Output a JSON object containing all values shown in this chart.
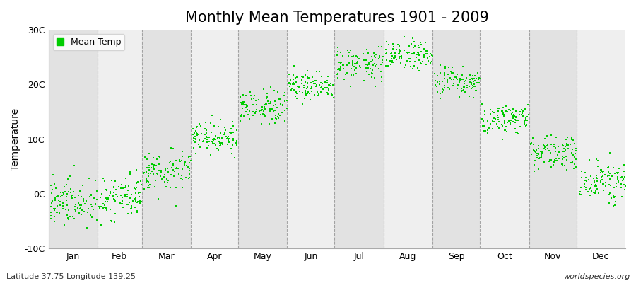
{
  "title": "Monthly Mean Temperatures 1901 - 2009",
  "ylabel": "Temperature",
  "ylim": [
    -10,
    30
  ],
  "yticks": [
    -10,
    0,
    10,
    20,
    30
  ],
  "ytick_labels": [
    "-10C",
    "0C",
    "10C",
    "20C",
    "30C"
  ],
  "months": [
    "Jan",
    "Feb",
    "Mar",
    "Apr",
    "May",
    "Jun",
    "Jul",
    "Aug",
    "Sep",
    "Oct",
    "Nov",
    "Dec"
  ],
  "month_days": [
    31,
    28,
    31,
    30,
    31,
    30,
    31,
    31,
    30,
    31,
    30,
    31
  ],
  "mean_temps": [
    -2.0,
    -1.5,
    3.5,
    9.5,
    15.0,
    19.0,
    23.0,
    24.5,
    19.5,
    13.0,
    7.0,
    1.5
  ],
  "std_temps": [
    2.2,
    2.2,
    1.8,
    1.4,
    1.3,
    1.3,
    1.3,
    1.3,
    1.3,
    1.3,
    1.3,
    1.8
  ],
  "trend_per_year": [
    0.01,
    0.01,
    0.01,
    0.01,
    0.01,
    0.01,
    0.01,
    0.01,
    0.01,
    0.01,
    0.01,
    0.01
  ],
  "dot_color": "#00CC00",
  "background_color_light": "#EFEFEF",
  "background_color_dark": "#E2E2E2",
  "figure_color": "#FFFFFF",
  "n_years": 109,
  "start_year": 1901,
  "random_seed": 42,
  "legend_label": "Mean Temp",
  "subtitle_left": "Latitude 37.75 Longitude 139.25",
  "subtitle_right": "worldspecies.org",
  "title_fontsize": 15,
  "axis_fontsize": 10,
  "label_fontsize": 9,
  "marker_size": 3,
  "dashed_line_color": "#888888"
}
